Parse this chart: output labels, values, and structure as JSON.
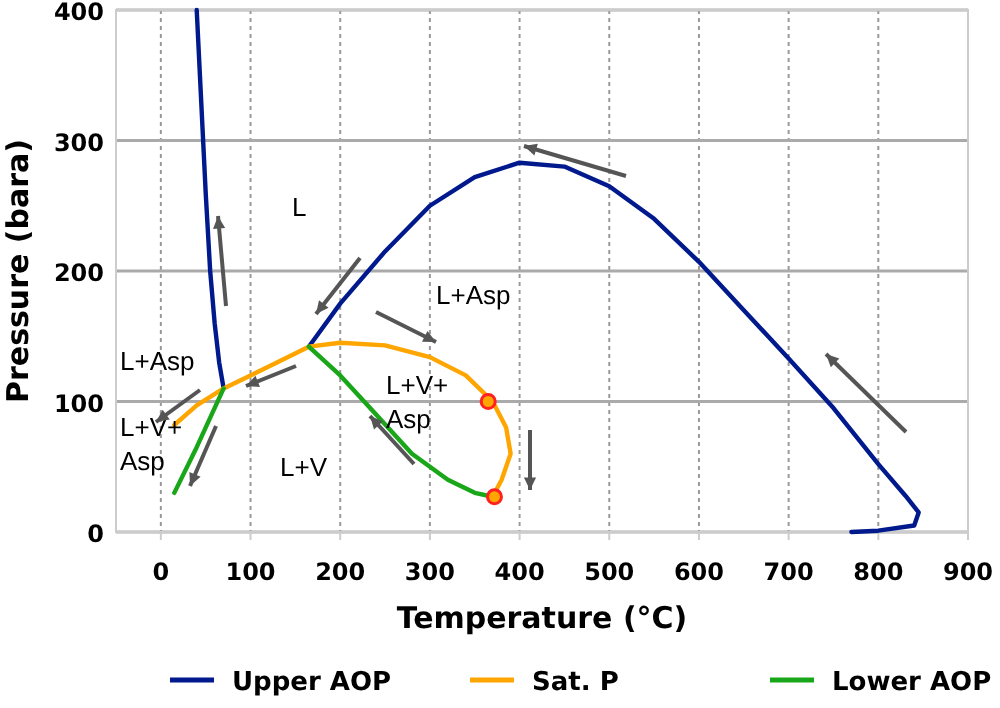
{
  "chart_data": {
    "type": "line",
    "xlabel": "Temperature (°C)",
    "ylabel": "Pressure (bara)",
    "xlim": [
      -50,
      900
    ],
    "ylim": [
      0,
      400
    ],
    "xticks": [
      0,
      100,
      200,
      300,
      400,
      500,
      600,
      700,
      800,
      900
    ],
    "yticks": [
      0,
      100,
      200,
      300,
      400
    ],
    "grid": true,
    "legend": "bottom",
    "series": [
      {
        "name": "Upper AOP",
        "color": "#00198c",
        "x": [
          40,
          45,
          50,
          55,
          60,
          65,
          70,
          null,
          165,
          200,
          250,
          300,
          350,
          400,
          450,
          500,
          550,
          600,
          650,
          700,
          750,
          800,
          830,
          845,
          840,
          800,
          770
        ],
        "values": [
          400,
          330,
          260,
          200,
          160,
          130,
          110,
          null,
          142,
          175,
          215,
          250,
          272,
          283,
          280,
          265,
          240,
          207,
          170,
          133,
          95,
          52,
          28,
          15,
          5,
          1,
          0
        ]
      },
      {
        "name": "Sat. P",
        "color": "#ffa500",
        "x": [
          15,
          40,
          70,
          100,
          130,
          165,
          200,
          250,
          300,
          340,
          370,
          385,
          390,
          380,
          370
        ],
        "values": [
          82,
          97,
          110,
          120,
          130,
          142,
          145,
          143,
          134,
          120,
          100,
          80,
          60,
          40,
          27
        ]
      },
      {
        "name": "Lower AOP",
        "color": "#19a619",
        "x": [
          15,
          40,
          70,
          null,
          165,
          200,
          240,
          280,
          320,
          350,
          370
        ],
        "values": [
          30,
          65,
          110,
          null,
          142,
          120,
          90,
          60,
          40,
          30,
          27
        ]
      },
      {
        "type": "scatter",
        "color": "#ff2020",
        "x": [
          365,
          372
        ],
        "values": [
          100,
          27
        ]
      }
    ],
    "annotations": [
      "L",
      "L+Asp",
      "L+Asp",
      "L+V+\nAsp",
      "L+V+\nAsp",
      "L+V"
    ]
  }
}
